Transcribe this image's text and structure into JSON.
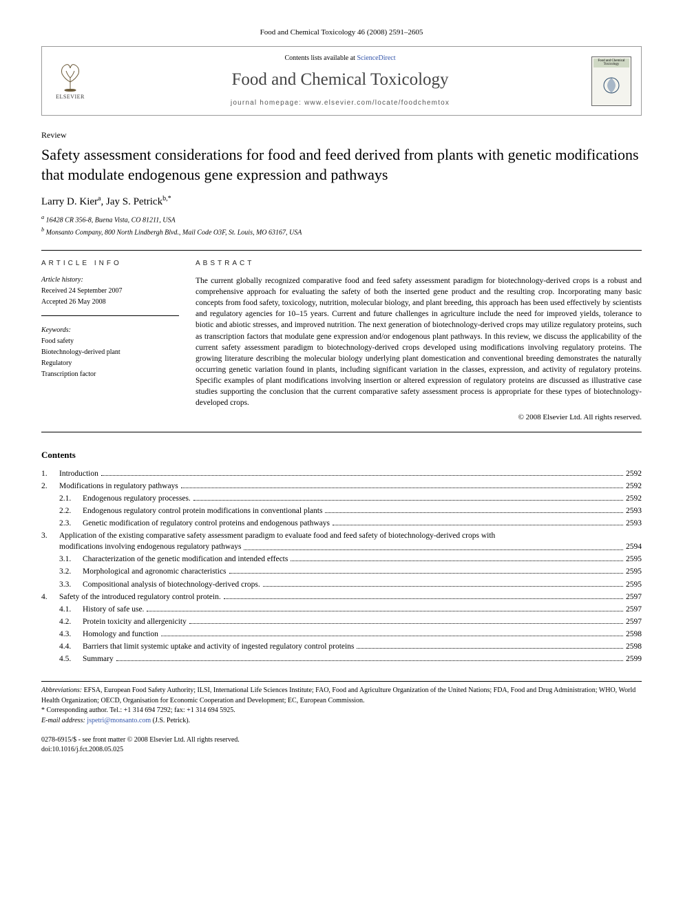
{
  "citation": "Food and Chemical Toxicology 46 (2008) 2591–2605",
  "header": {
    "publisher_name": "ELSEVIER",
    "contents_prefix": "Contents lists available at ",
    "contents_link": "ScienceDirect",
    "journal_title": "Food and Chemical Toxicology",
    "homepage_prefix": "journal homepage: ",
    "homepage_url": "www.elsevier.com/locate/foodchemtox",
    "cover_top": "Food and Chemical Toxicology"
  },
  "article": {
    "type": "Review",
    "title": "Safety assessment considerations for food and feed derived from plants with genetic modifications that modulate endogenous gene expression and pathways",
    "authors_html": "Larry D. Kier",
    "author1": "Larry D. Kier",
    "author1_sup": "a",
    "author2": "Jay S. Petrick",
    "author2_sup": "b,*",
    "affiliations": {
      "a": "16428 CR 356-8, Buena Vista, CO 81211, USA",
      "b": "Monsanto Company, 800 North Lindbergh Blvd., Mail Code O3F, St. Louis, MO 63167, USA"
    }
  },
  "info": {
    "heading": "ARTICLE INFO",
    "history_label": "Article history:",
    "received": "Received 24 September 2007",
    "accepted": "Accepted 26 May 2008",
    "keywords_label": "Keywords:",
    "keywords": [
      "Food safety",
      "Biotechnology-derived plant",
      "Regulatory",
      "Transcription factor"
    ]
  },
  "abstract": {
    "heading": "ABSTRACT",
    "text": "The current globally recognized comparative food and feed safety assessment paradigm for biotechnology-derived crops is a robust and comprehensive approach for evaluating the safety of both the inserted gene product and the resulting crop. Incorporating many basic concepts from food safety, toxicology, nutrition, molecular biology, and plant breeding, this approach has been used effectively by scientists and regulatory agencies for 10–15 years. Current and future challenges in agriculture include the need for improved yields, tolerance to biotic and abiotic stresses, and improved nutrition. The next generation of biotechnology-derived crops may utilize regulatory proteins, such as transcription factors that modulate gene expression and/or endogenous plant pathways. In this review, we discuss the applicability of the current safety assessment paradigm to biotechnology-derived crops developed using modifications involving regulatory proteins. The growing literature describing the molecular biology underlying plant domestication and conventional breeding demonstrates the naturally occurring genetic variation found in plants, including significant variation in the classes, expression, and activity of regulatory proteins. Specific examples of plant modifications involving insertion or altered expression of regulatory proteins are discussed as illustrative case studies supporting the conclusion that the current comparative safety assessment process is appropriate for these types of biotechnology-developed crops.",
    "copyright": "© 2008 Elsevier Ltd. All rights reserved."
  },
  "contents": {
    "heading": "Contents",
    "items": [
      {
        "num": "1.",
        "label": "Introduction",
        "page": "2592",
        "sub": false
      },
      {
        "num": "2.",
        "label": "Modifications in regulatory pathways",
        "page": "2592",
        "sub": false
      },
      {
        "num": "2.1.",
        "label": "Endogenous regulatory processes.",
        "page": "2592",
        "sub": true
      },
      {
        "num": "2.2.",
        "label": "Endogenous regulatory control protein modifications in conventional plants",
        "page": "2593",
        "sub": true
      },
      {
        "num": "2.3.",
        "label": "Genetic modification of regulatory control proteins and endogenous pathways",
        "page": "2593",
        "sub": true
      },
      {
        "num": "3.",
        "label": "Application of the existing comparative safety assessment paradigm to evaluate food and feed safety of biotechnology-derived crops with modifications involving endogenous regulatory pathways",
        "page": "2594",
        "sub": false,
        "wrap": true
      },
      {
        "num": "3.1.",
        "label": "Characterization of the genetic modification and intended effects",
        "page": "2595",
        "sub": true
      },
      {
        "num": "3.2.",
        "label": "Morphological and agronomic characteristics",
        "page": "2595",
        "sub": true
      },
      {
        "num": "3.3.",
        "label": "Compositional analysis of biotechnology-derived crops.",
        "page": "2595",
        "sub": true
      },
      {
        "num": "4.",
        "label": "Safety of the introduced regulatory control protein.",
        "page": "2597",
        "sub": false
      },
      {
        "num": "4.1.",
        "label": "History of safe use.",
        "page": "2597",
        "sub": true
      },
      {
        "num": "4.2.",
        "label": "Protein toxicity and allergenicity",
        "page": "2597",
        "sub": true
      },
      {
        "num": "4.3.",
        "label": "Homology and function",
        "page": "2598",
        "sub": true
      },
      {
        "num": "4.4.",
        "label": "Barriers that limit systemic uptake and activity of ingested regulatory control proteins",
        "page": "2598",
        "sub": true
      },
      {
        "num": "4.5.",
        "label": "Summary",
        "page": "2599",
        "sub": true
      }
    ]
  },
  "footnotes": {
    "abbrev_label": "Abbreviations:",
    "abbrev_text": " EFSA, European Food Safety Authority; ILSI, International Life Sciences Institute; FAO, Food and Agriculture Organization of the United Nations; FDA, Food and Drug Administration; WHO, World Health Organization; OECD, Organisation for Economic Cooperation and Development; EC, European Commission.",
    "corresponding": "* Corresponding author. Tel.: +1 314 694 7292; fax: +1 314 694 5925.",
    "email_label": "E-mail address:",
    "email": "jspetri@monsanto.com",
    "email_name": " (J.S. Petrick)."
  },
  "bottom": {
    "issn": "0278-6915/$ - see front matter © 2008 Elsevier Ltd. All rights reserved.",
    "doi": "doi:10.1016/j.fct.2008.05.025"
  },
  "colors": {
    "link": "#3355aa",
    "text": "#000000",
    "border": "#999999",
    "gray_text": "#555555"
  }
}
